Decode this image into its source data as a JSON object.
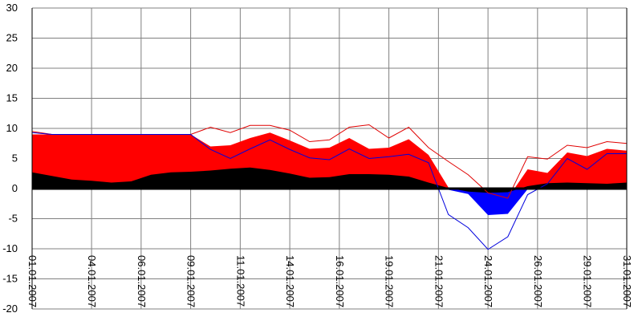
{
  "chart_data": {
    "type": "area",
    "grid": true,
    "legend": "none",
    "ylim": [
      -20,
      30
    ],
    "y_ticks": [
      30,
      25,
      20,
      15,
      10,
      5,
      0,
      -5,
      -10,
      -15,
      -20
    ],
    "xlim": [
      1,
      31
    ],
    "x_ticks": [
      {
        "day": 1,
        "label": "01.01.2007"
      },
      {
        "day": 4,
        "label": "04.01.2007"
      },
      {
        "day": 6.5,
        "label": "06.01.2007"
      },
      {
        "day": 9,
        "label": "09.01.2007"
      },
      {
        "day": 11.5,
        "label": "11.01.2007"
      },
      {
        "day": 14,
        "label": "14.01.2007"
      },
      {
        "day": 16.5,
        "label": "16.01.2007"
      },
      {
        "day": 19,
        "label": "19.01.2007"
      },
      {
        "day": 21.5,
        "label": "21.01.2007"
      },
      {
        "day": 24,
        "label": "24.01.2007"
      },
      {
        "day": 26.5,
        "label": "26.01.2007"
      },
      {
        "day": 29,
        "label": "29.01.2007"
      },
      {
        "day": 31,
        "label": "31.01.2007"
      }
    ],
    "colors": {
      "red_fill": "#ff0000",
      "blue_fill": "#0000ff",
      "black_fill": "#000000",
      "red_line": "#e00000",
      "blue_line": "#0000dd",
      "grid": "#808080",
      "zero_line": "#000000"
    },
    "x": [
      1,
      2,
      3,
      4,
      5,
      6,
      7,
      8,
      9,
      10,
      11,
      12,
      13,
      14,
      15,
      16,
      17,
      18,
      19,
      20,
      21,
      22,
      23,
      24,
      25,
      26,
      27,
      28,
      29,
      30,
      31
    ],
    "series": [
      {
        "role": "red_area_top",
        "values": [
          9,
          9,
          9,
          9,
          9,
          9,
          9,
          9,
          9,
          7,
          7.2,
          8.4,
          9.3,
          8,
          6.6,
          6.8,
          8.4,
          6.6,
          6.8,
          8.2,
          5.6,
          0.2,
          -0.4,
          -0.8,
          -1.6,
          3.2,
          2.6,
          6,
          5.4,
          6.6,
          6.3
        ]
      },
      {
        "role": "black_band_top",
        "values": [
          2.7,
          2.1,
          1.5,
          1.3,
          1,
          1.2,
          2.3,
          2.7,
          2.8,
          3,
          3.3,
          3.5,
          3.1,
          2.5,
          1.8,
          1.9,
          2.4,
          2.4,
          2.3,
          2,
          1,
          0.1,
          -0.5,
          -0.7,
          -0.6,
          0.4,
          0.9,
          1,
          0.9,
          0.8,
          1
        ]
      },
      {
        "role": "blue_area_bottom",
        "values": [
          0,
          0,
          0,
          0,
          0,
          0,
          0,
          0,
          0,
          0,
          0,
          0,
          0,
          0,
          0,
          0,
          0,
          0,
          0,
          0,
          0,
          -0.2,
          -0.9,
          -4.4,
          -4.2,
          -0.1,
          0,
          0,
          0,
          0,
          0
        ]
      },
      {
        "role": "red_line",
        "values": [
          9.5,
          9,
          9,
          9,
          9,
          9,
          9,
          9,
          9,
          10.2,
          9.3,
          10.5,
          10.5,
          9.7,
          7.8,
          8.1,
          10.2,
          10.6,
          8.4,
          10.2,
          6.8,
          4.5,
          2.3,
          -0.7,
          -1.6,
          5.3,
          4.9,
          7.2,
          6.8,
          7.8,
          7.5
        ]
      },
      {
        "role": "blue_line",
        "values": [
          9.3,
          9,
          9,
          9,
          9,
          9,
          9,
          9,
          9,
          6.5,
          5,
          6.6,
          8.1,
          6.5,
          5.1,
          4.8,
          6.6,
          5,
          5.3,
          5.7,
          4.3,
          -4.3,
          -6.5,
          -10.1,
          -8,
          -1,
          0.8,
          5,
          3.2,
          5.8,
          5.8
        ]
      }
    ]
  }
}
